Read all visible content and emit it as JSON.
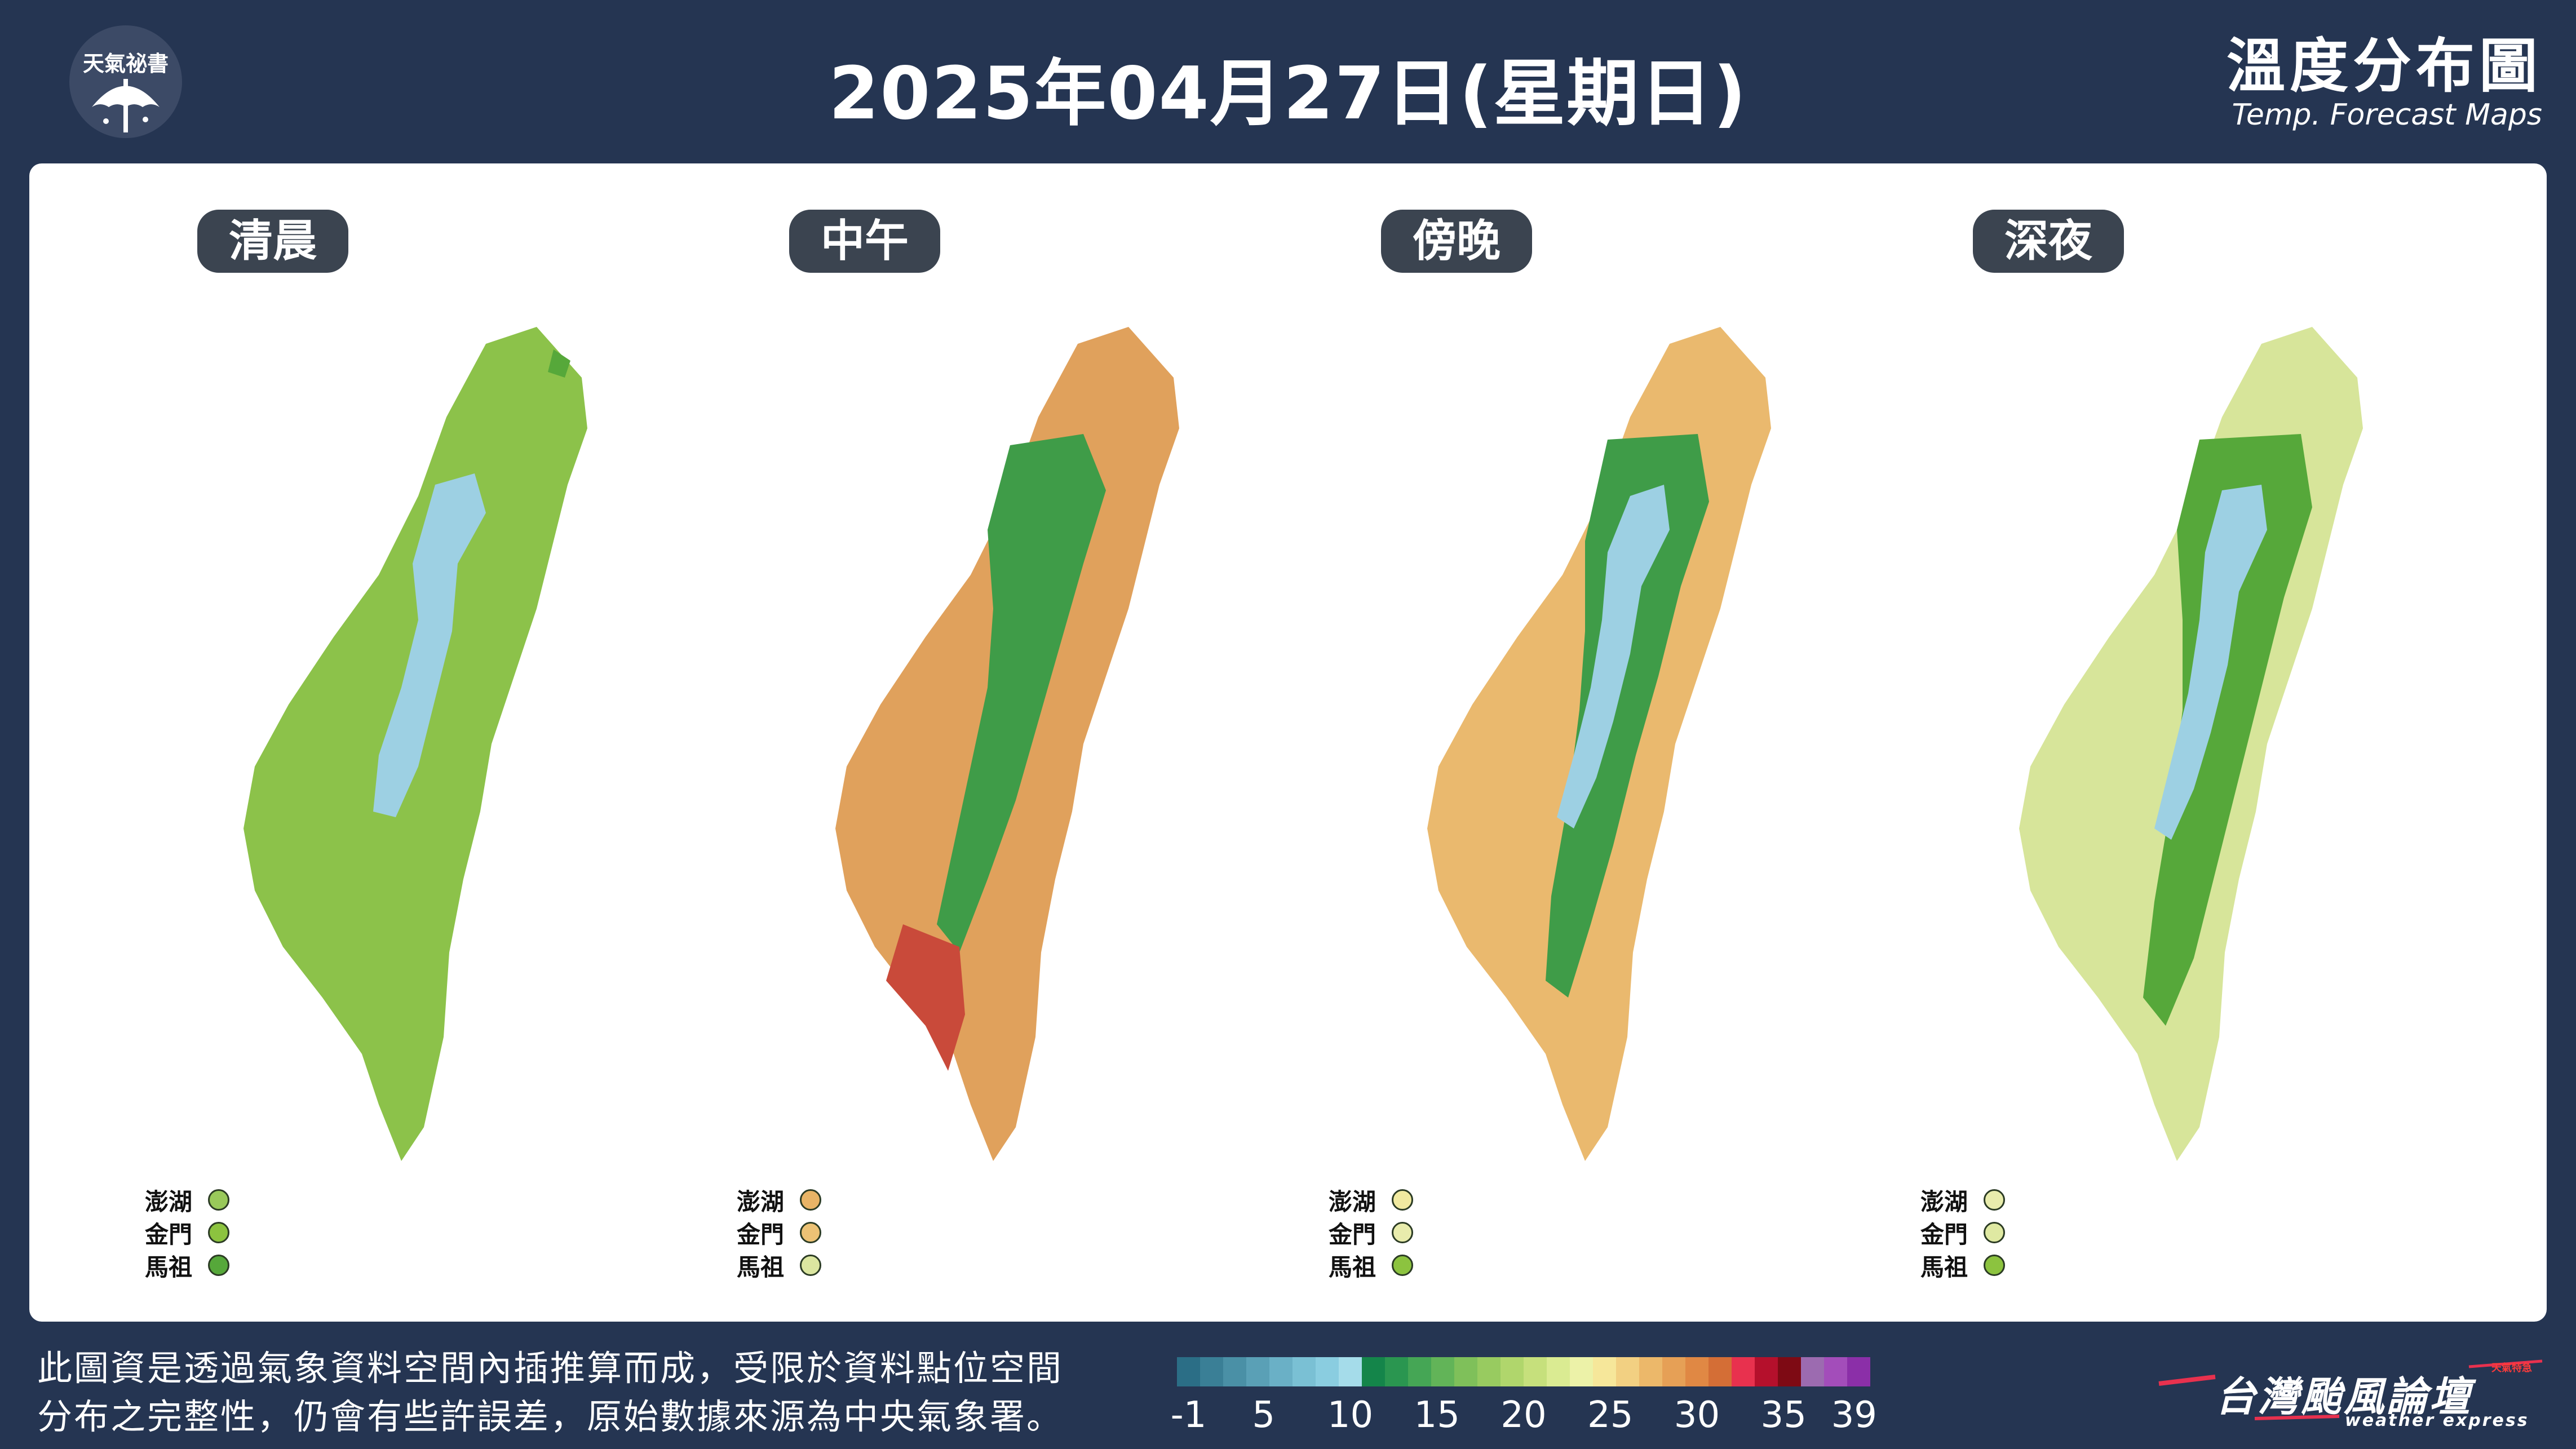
{
  "header": {
    "logo_text": "天氣祕書",
    "title": "2025年04月27日(星期日)",
    "corner_title_zh": "溫度分布圖",
    "corner_title_en": "Temp. Forecast Maps"
  },
  "maps": [
    {
      "period": "清晨",
      "mainland_color": "#8cc24a",
      "mountain_color": "#9dd0e3",
      "islands": [
        {
          "name": "澎湖",
          "color": "#99c95a"
        },
        {
          "name": "金門",
          "color": "#8cc33f"
        },
        {
          "name": "馬祖",
          "color": "#56a83a"
        }
      ]
    },
    {
      "period": "中午",
      "mainland_color": "#e0a15c",
      "mountain_color": "#3f9c48",
      "islands": [
        {
          "name": "澎湖",
          "color": "#e8b466"
        },
        {
          "name": "金門",
          "color": "#ecc275"
        },
        {
          "name": "馬祖",
          "color": "#dbe6a0"
        }
      ]
    },
    {
      "period": "傍晚",
      "mainland_color": "#eab96e",
      "mountain_color": "#9dd0e3",
      "islands": [
        {
          "name": "澎湖",
          "color": "#f1eaa0"
        },
        {
          "name": "金門",
          "color": "#e8ecac"
        },
        {
          "name": "馬祖",
          "color": "#8cc33f"
        }
      ]
    },
    {
      "period": "深夜",
      "mainland_color": "#d7e59a",
      "mountain_color": "#9dd0e3",
      "islands": [
        {
          "name": "澎湖",
          "color": "#e8ecac"
        },
        {
          "name": "金門",
          "color": "#dfe9a2"
        },
        {
          "name": "馬祖",
          "color": "#8cc33f"
        }
      ]
    }
  ],
  "footer": {
    "disclaimer_line1": "此圖資是透過氣象資料空間內插推算而成，受限於資料點位空間",
    "disclaimer_line2": "分布之完整性，仍會有些許誤差，原始數據來源為中央氣象署。",
    "legend_colors": [
      "#2b6e86",
      "#3a7f96",
      "#4a90a6",
      "#5aa0b6",
      "#6ab0c6",
      "#7ac0d4",
      "#8acde0",
      "#a5dcea",
      "#14854a",
      "#2a9650",
      "#45a655",
      "#62b458",
      "#7fc05a",
      "#98cb60",
      "#b0d66c",
      "#c6e07c",
      "#daeb92",
      "#ecf2a8",
      "#f6e79a",
      "#f2d082",
      "#ecb86a",
      "#e6a056",
      "#e08844",
      "#d46e36",
      "#e8314e",
      "#b5102c",
      "#7e0a14",
      "#9c6bb0",
      "#a34dba",
      "#8b2fa8"
    ],
    "legend_labels": [
      "-1",
      "5",
      "10",
      "15",
      "20",
      "25",
      "30",
      "35",
      "39"
    ],
    "brand_zh": "台灣颱風論壇",
    "brand_en": "weather express",
    "brand_small": "天氣特急"
  }
}
